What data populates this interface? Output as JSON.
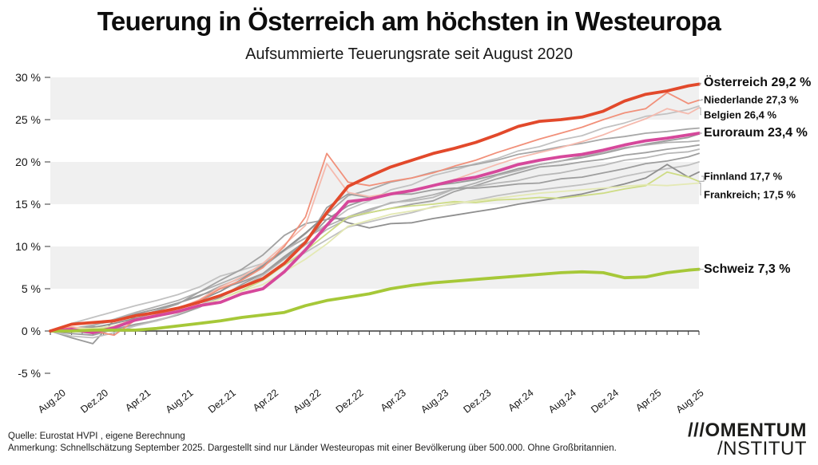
{
  "header": {
    "title": "Teuerung in Österreich am höchsten in Westeuropa",
    "subtitle": "Aufsummierte Teuerungsrate seit August 2020"
  },
  "footer": {
    "source": "Quelle: Eurostat HVPI , eigene Berechnung",
    "note": "Anmerkung: Schnellschätzung September 2025. Dargestellt sind nur Länder Westeuropas mit einer Bevölkerung über 500.000. Ohne Großbritannien."
  },
  "logo": {
    "line1": "///OMENTUM",
    "line2": "/NSTITUT"
  },
  "chart_data": {
    "type": "line",
    "title": "Teuerung in Österreich am höchsten in Westeuropa",
    "subtitle": "Aufsummierte Teuerungsrate seit August 2020",
    "ylim": [
      -5,
      30
    ],
    "y_ticks": [
      {
        "v": 30,
        "label": "30 %"
      },
      {
        "v": 25,
        "label": "25 %"
      },
      {
        "v": 20,
        "label": "20 %"
      },
      {
        "v": 15,
        "label": "15 %"
      },
      {
        "v": 10,
        "label": "10 %"
      },
      {
        "v": 5,
        "label": "5 %"
      },
      {
        "v": 0,
        "label": "0 %"
      },
      {
        "v": -5,
        "label": "-5 %"
      }
    ],
    "bands": [
      [
        25,
        30
      ],
      [
        15,
        20
      ],
      [
        5,
        10
      ]
    ],
    "band_color": "#f0f0f0",
    "axis_color": "#3a3a3a",
    "connector_color": "#b3b3b3",
    "x_tick_labels": [
      "Aug.20",
      "Dez.20",
      "Apr.21",
      "Aug.21",
      "Dez.21",
      "Apr.22",
      "Aug.22",
      "Dez.22",
      "Apr.23",
      "Aug.23",
      "Dez.23",
      "Apr.24",
      "Aug.24",
      "Dez.24",
      "Apr.25",
      "Aug.25"
    ],
    "x_tick_months": [
      0,
      4,
      8,
      12,
      16,
      20,
      24,
      28,
      32,
      36,
      40,
      44,
      48,
      52,
      56,
      60
    ],
    "x_months_total": 61,
    "x_months": [
      0,
      2,
      4,
      6,
      8,
      10,
      12,
      14,
      16,
      18,
      20,
      22,
      24,
      26,
      28,
      30,
      32,
      34,
      36,
      38,
      40,
      42,
      44,
      46,
      48,
      50,
      52,
      54,
      56,
      58,
      60,
      61
    ],
    "series": [
      {
        "name": "westeuropa-1",
        "label": null,
        "color": "#c2c2c2",
        "width": 1.8,
        "values": [
          0,
          0.9,
          1.6,
          2.3,
          3.0,
          3.6,
          4.3,
          5.2,
          6.5,
          7.2,
          8.0,
          9.5,
          11.0,
          12.6,
          14.4,
          15.4,
          16.7,
          17.3,
          18.4,
          19.0,
          19.8,
          20.4,
          21.3,
          21.8,
          22.6,
          23.1,
          24.0,
          24.6,
          25.4,
          25.7,
          26.2,
          26.6
        ]
      },
      {
        "name": "westeuropa-2",
        "label": null,
        "color": "#a8a8a8",
        "width": 1.8,
        "values": [
          0,
          0.3,
          0.7,
          1.2,
          2.0,
          2.6,
          3.3,
          4.1,
          5.3,
          6.3,
          7.6,
          9.5,
          11.5,
          13.8,
          16.0,
          16.7,
          17.6,
          18.1,
          18.8,
          19.3,
          19.7,
          20.2,
          20.9,
          21.3,
          21.8,
          22.2,
          22.7,
          23.0,
          23.4,
          23.6,
          23.9,
          24.0
        ]
      },
      {
        "name": "westeuropa-3",
        "label": null,
        "color": "#9a9a9a",
        "width": 1.8,
        "values": [
          0,
          -0.8,
          -1.5,
          1.3,
          2.0,
          2.6,
          3.3,
          4.2,
          5.0,
          5.8,
          6.8,
          8.8,
          10.6,
          13.2,
          14.8,
          15.7,
          16.2,
          16.7,
          17.2,
          17.5,
          17.9,
          18.5,
          19.2,
          19.7,
          20.1,
          20.5,
          21.0,
          21.6,
          22.1,
          22.5,
          22.9,
          23.3
        ]
      },
      {
        "name": "westeuropa-4",
        "label": null,
        "color": "#b0b0b0",
        "width": 1.8,
        "values": [
          0,
          0.3,
          0.6,
          1.4,
          2.2,
          2.9,
          3.6,
          4.6,
          5.6,
          6.6,
          7.8,
          9.6,
          11.0,
          12.4,
          13.5,
          14.4,
          15.1,
          15.6,
          16.1,
          16.8,
          17.5,
          18.4,
          19.0,
          19.7,
          20.1,
          20.7,
          21.1,
          21.7,
          22.0,
          22.3,
          22.4,
          22.5
        ]
      },
      {
        "name": "westeuropa-5",
        "label": null,
        "color": "#a2a2a2",
        "width": 1.8,
        "values": [
          0,
          0.2,
          0.5,
          0.2,
          1.7,
          2.4,
          3.2,
          4.6,
          6.0,
          7.3,
          9.0,
          11.3,
          12.7,
          13.2,
          13.4,
          14.0,
          14.5,
          15.0,
          15.4,
          16.5,
          17.2,
          18.0,
          18.7,
          19.4,
          19.6,
          20.0,
          20.3,
          20.8,
          21.1,
          21.5,
          21.8,
          22.0
        ]
      },
      {
        "name": "westeuropa-6",
        "label": null,
        "color": "#b8b8b8",
        "width": 1.8,
        "values": [
          0,
          0.0,
          -0.3,
          0.2,
          0.7,
          1.3,
          1.9,
          2.8,
          4.0,
          5.2,
          6.6,
          8.5,
          10.2,
          12.0,
          13.3,
          14.2,
          15.2,
          15.4,
          15.8,
          16.8,
          17.1,
          17.5,
          17.8,
          18.4,
          18.7,
          19.2,
          19.6,
          20.2,
          20.5,
          21.0,
          21.2,
          21.5
        ]
      },
      {
        "name": "westeuropa-7",
        "label": null,
        "color": "#9e9e9e",
        "width": 1.8,
        "values": [
          0,
          -0.3,
          -0.5,
          0.2,
          0.8,
          1.2,
          1.9,
          2.8,
          4.0,
          5.5,
          6.8,
          8.6,
          10.5,
          14.6,
          16.2,
          15.8,
          16.2,
          16.2,
          16.7,
          16.9,
          16.9,
          17.1,
          17.4,
          17.5,
          18.0,
          18.2,
          18.7,
          19.2,
          19.8,
          20.1,
          20.6,
          21.0
        ]
      },
      {
        "name": "westeuropa-8",
        "label": null,
        "color": "#c0c0c0",
        "width": 1.8,
        "values": [
          0,
          -0.6,
          -0.8,
          -0.2,
          0.6,
          1.2,
          2.0,
          3.0,
          4.2,
          5.2,
          6.3,
          7.8,
          9.3,
          10.8,
          12.3,
          12.9,
          13.5,
          14.0,
          14.7,
          15.0,
          15.5,
          16.0,
          16.4,
          16.7,
          17.0,
          17.3,
          17.7,
          18.3,
          18.8,
          19.2,
          19.6,
          20.0
        ]
      },
      {
        "name": "westeuropa-9",
        "label": null,
        "color": "#8f8f8f",
        "width": 1.8,
        "values": [
          0,
          0.2,
          0.4,
          0.9,
          1.5,
          2.0,
          2.6,
          3.6,
          4.7,
          6.1,
          7.7,
          9.6,
          11.6,
          13.8,
          12.8,
          12.2,
          12.7,
          12.8,
          13.3,
          13.7,
          14.1,
          14.5,
          15.0,
          15.4,
          15.8,
          16.2,
          16.8,
          17.4,
          18.1,
          19.7,
          18.2,
          18.8
        ]
      },
      {
        "name": "belgien",
        "label": "Belgien 26,4 %",
        "label_size": "small",
        "label_value": 25.6,
        "color": "#f5baae",
        "width": 1.8,
        "values": [
          0,
          0.5,
          0.2,
          0.6,
          1.4,
          2.0,
          2.7,
          3.7,
          5.2,
          6.4,
          8.0,
          10.2,
          12.5,
          19.8,
          16.4,
          15.9,
          16.3,
          16.7,
          17.2,
          17.9,
          18.8,
          19.7,
          20.5,
          21.1,
          21.7,
          22.4,
          23.2,
          24.2,
          25.1,
          26.3,
          25.7,
          26.4
        ]
      },
      {
        "name": "niederlande",
        "label": "Niederlande 27,3 %",
        "label_size": "small",
        "label_value": 27.4,
        "color": "#f1907a",
        "width": 1.8,
        "values": [
          0,
          0.4,
          0.0,
          -0.5,
          1.3,
          1.9,
          2.6,
          3.6,
          5.0,
          6.0,
          7.5,
          10.0,
          13.5,
          21.0,
          17.6,
          17.2,
          17.7,
          18.1,
          18.7,
          19.5,
          20.2,
          21.1,
          21.9,
          22.7,
          23.4,
          24.1,
          25.0,
          25.8,
          26.3,
          28.2,
          26.9,
          27.3
        ]
      },
      {
        "name": "finnland",
        "label": "Finnland 17,7 %",
        "label_size": "small",
        "label_value": 18.3,
        "color": "#cedc85",
        "width": 1.8,
        "values": [
          0,
          0.2,
          0.2,
          0.5,
          1.2,
          1.7,
          2.2,
          2.9,
          3.8,
          4.8,
          6.0,
          7.8,
          9.5,
          11.5,
          13.5,
          14.0,
          14.5,
          14.8,
          15.0,
          15.3,
          15.2,
          15.5,
          15.6,
          15.8,
          15.7,
          16.0,
          16.3,
          16.8,
          17.2,
          18.8,
          18.2,
          17.7
        ]
      },
      {
        "name": "frankreich",
        "label": "Frankreich; 17,5 %",
        "label_size": "small",
        "label_value": 16.1,
        "color": "#e4e9b4",
        "width": 1.8,
        "values": [
          0,
          0.3,
          0.3,
          0.6,
          1.3,
          1.8,
          2.3,
          3.0,
          3.8,
          4.7,
          5.5,
          7.0,
          8.5,
          10.3,
          12.4,
          13.1,
          13.8,
          14.2,
          14.6,
          15.1,
          15.4,
          15.7,
          16.0,
          16.3,
          16.5,
          16.7,
          16.9,
          17.1,
          17.3,
          17.2,
          17.4,
          17.5
        ]
      },
      {
        "name": "euroraum",
        "label": "Euroraum 23,4 %",
        "label_size": "large",
        "label_value": 23.4,
        "color": "#d6489b",
        "width": 3.8,
        "values": [
          0,
          0.2,
          -0.2,
          0.4,
          1.3,
          1.8,
          2.3,
          3.0,
          3.4,
          4.4,
          5.0,
          7.0,
          9.6,
          12.5,
          15.3,
          15.6,
          16.2,
          16.6,
          17.2,
          17.8,
          18.2,
          18.9,
          19.7,
          20.2,
          20.6,
          20.9,
          21.4,
          22.0,
          22.5,
          22.8,
          23.2,
          23.4
        ]
      },
      {
        "name": "schweiz",
        "label": "Schweiz 7,3 %",
        "label_size": "large",
        "label_value": 7.3,
        "color": "#a6c838",
        "width": 3.8,
        "values": [
          0,
          0.0,
          0.1,
          0.1,
          0.1,
          0.3,
          0.6,
          0.9,
          1.2,
          1.6,
          1.9,
          2.2,
          3.0,
          3.6,
          4.0,
          4.4,
          5.0,
          5.4,
          5.7,
          5.9,
          6.1,
          6.3,
          6.5,
          6.7,
          6.9,
          7.0,
          6.9,
          6.3,
          6.4,
          6.9,
          7.2,
          7.3
        ]
      },
      {
        "name": "oesterreich",
        "label": "Österreich 29,2 %",
        "label_size": "large",
        "label_value": 29.3,
        "color": "#e2492b",
        "width": 3.8,
        "values": [
          0,
          0.8,
          1.0,
          1.2,
          1.8,
          2.2,
          2.7,
          3.4,
          4.2,
          5.2,
          6.2,
          8.0,
          10.5,
          14.0,
          17.1,
          18.3,
          19.4,
          20.2,
          21.0,
          21.6,
          22.3,
          23.2,
          24.2,
          24.8,
          25.0,
          25.3,
          26.0,
          27.2,
          28.0,
          28.4,
          29.0,
          29.2
        ]
      }
    ]
  }
}
